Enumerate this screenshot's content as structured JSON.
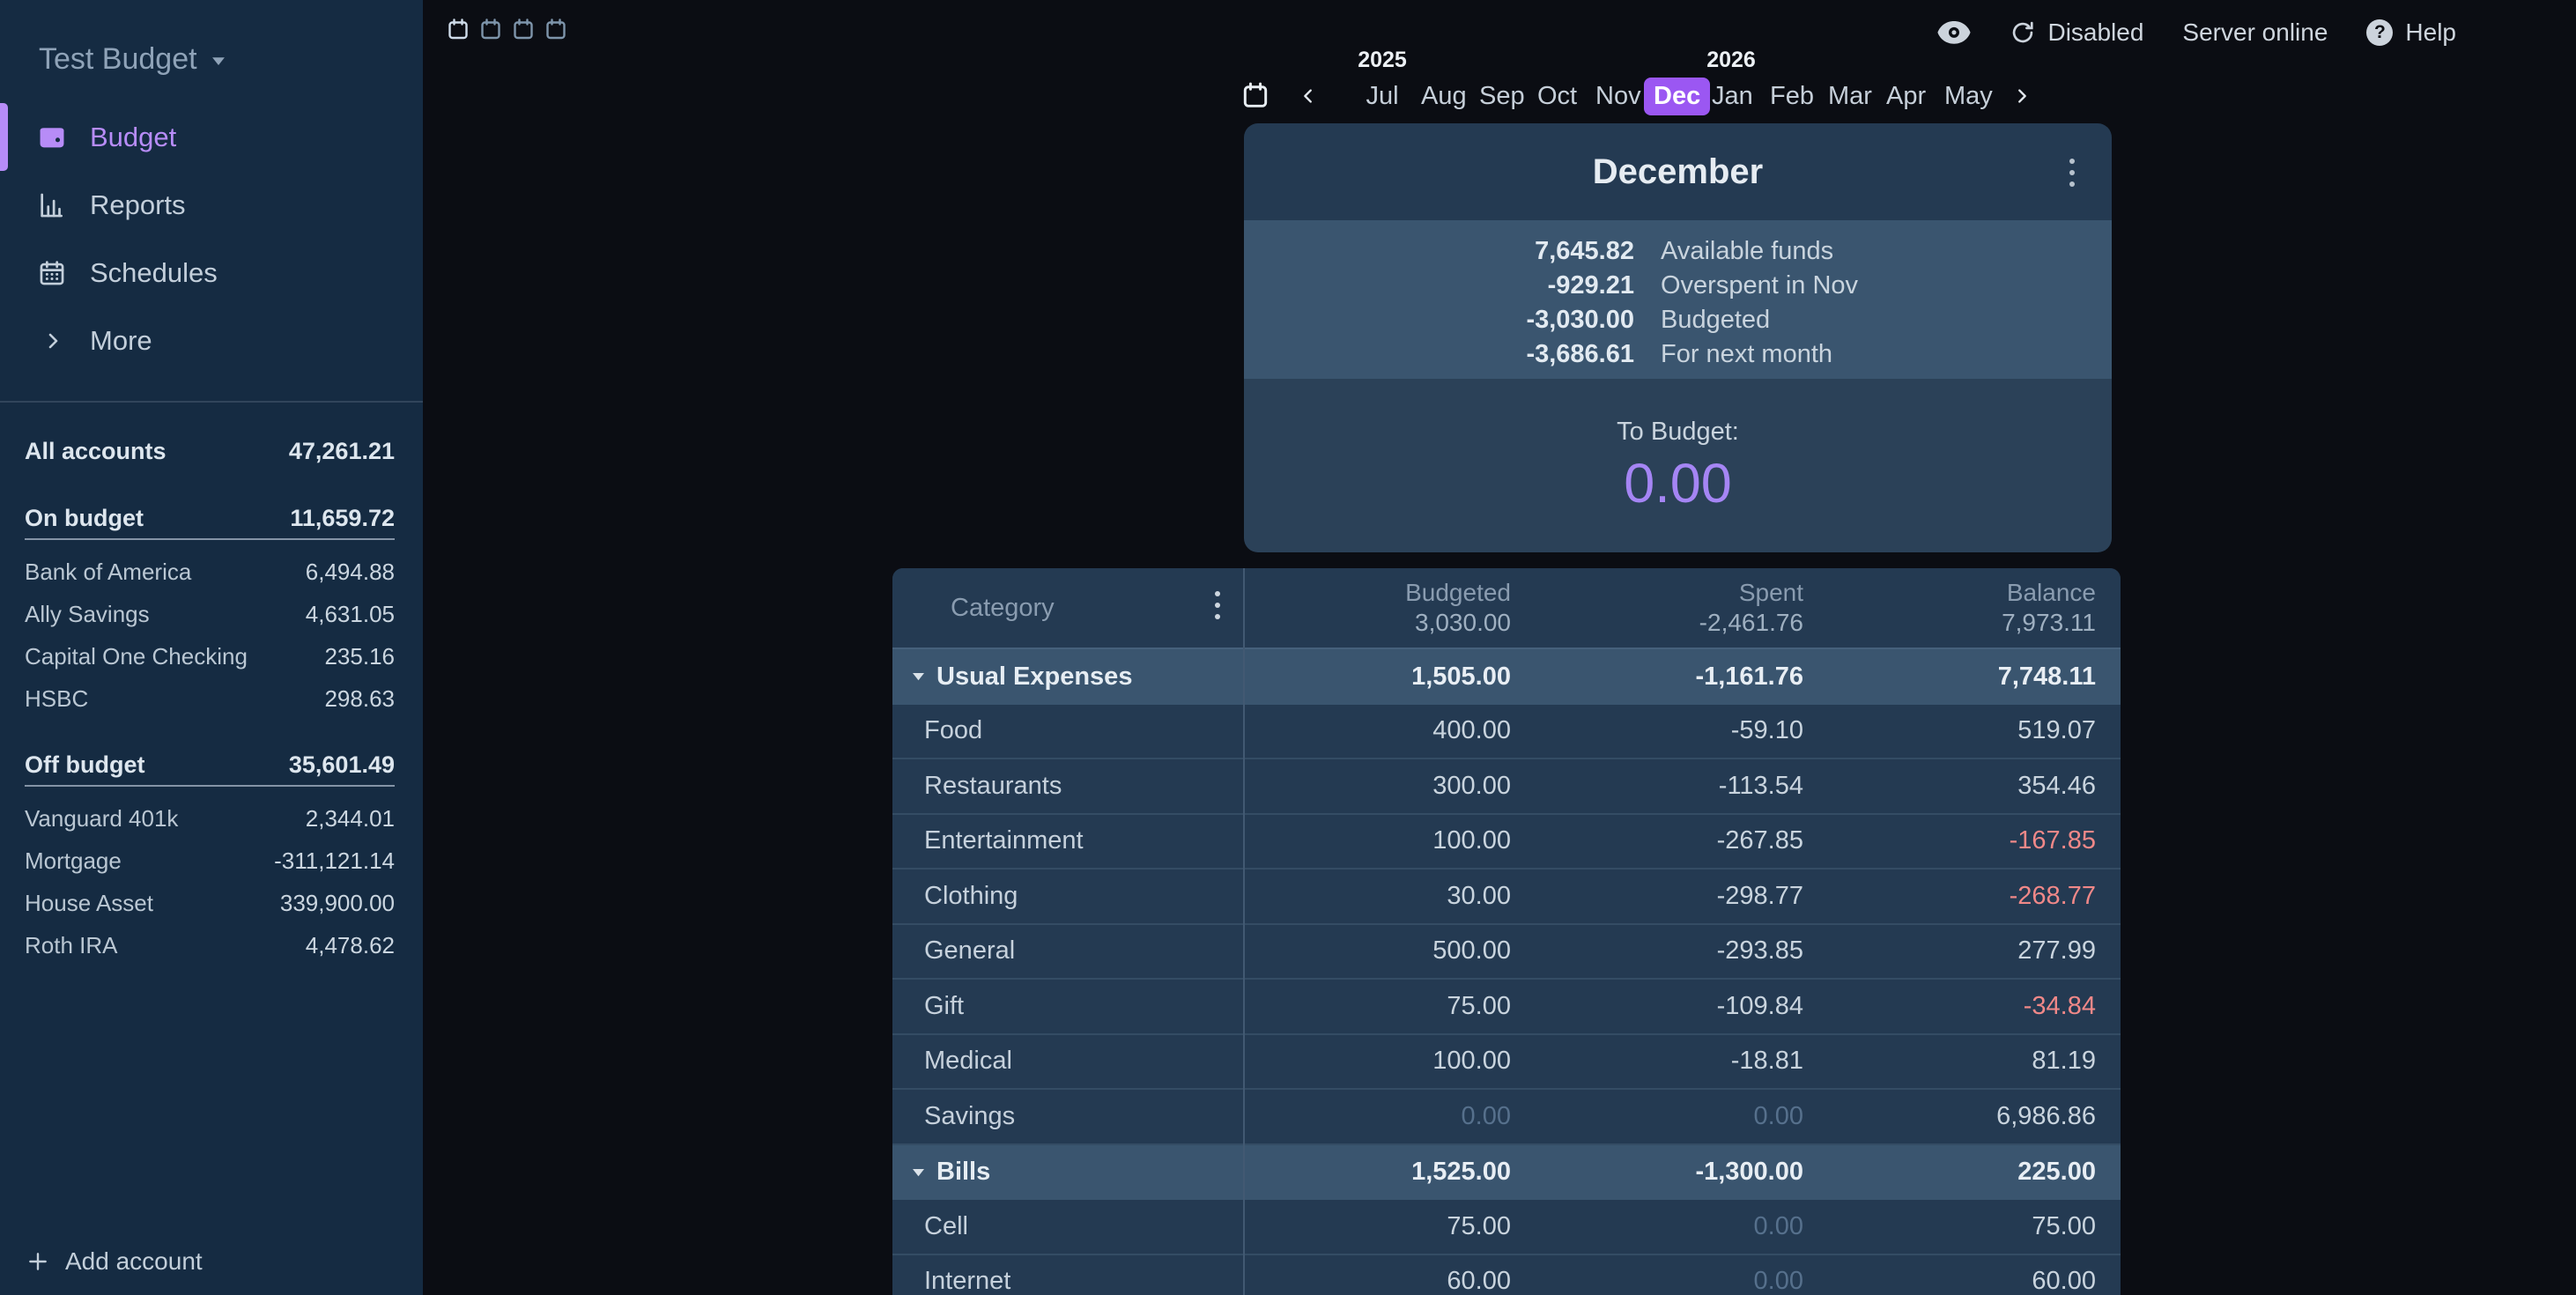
{
  "colors": {
    "accent_purple": "#9b57f2",
    "accent_purple_light": "#b78cf7",
    "to_budget_purple": "#a585f4",
    "negative_red": "#f08888",
    "sidebar_bg": "#152b42",
    "panel_bg": "#243a52",
    "panel_highlight_bg": "#3a556f"
  },
  "sidebar": {
    "title": "Test Budget",
    "nav": [
      {
        "label": "Budget",
        "icon": "wallet-icon",
        "active": true
      },
      {
        "label": "Reports",
        "icon": "bar-chart-icon",
        "active": false
      },
      {
        "label": "Schedules",
        "icon": "calendar-icon",
        "active": false
      },
      {
        "label": "More",
        "icon": "chevron-right-icon",
        "active": false
      }
    ],
    "account_groups": [
      {
        "label": "All accounts",
        "value": "47,261.21",
        "style": "total",
        "accounts": []
      },
      {
        "label": "On budget",
        "value": "11,659.72",
        "style": "section",
        "accounts": [
          {
            "name": "Bank of America",
            "value": "6,494.88"
          },
          {
            "name": "Ally Savings",
            "value": "4,631.05"
          },
          {
            "name": "Capital One Checking",
            "value": "235.16"
          },
          {
            "name": "HSBC",
            "value": "298.63"
          }
        ]
      },
      {
        "label": "Off budget",
        "value": "35,601.49",
        "style": "section",
        "accounts": [
          {
            "name": "Vanguard 401k",
            "value": "2,344.01"
          },
          {
            "name": "Mortgage",
            "value": "-311,121.14"
          },
          {
            "name": "House Asset",
            "value": "339,900.00"
          },
          {
            "name": "Roth IRA",
            "value": "4,478.62"
          }
        ]
      }
    ],
    "add_account_label": "Add account"
  },
  "topbar": {
    "privacy_icon": "eye-icon",
    "sync_icon": "sync-icon",
    "sync_label": "Disabled",
    "server_status": "Server online",
    "help_icon": "question-circle-icon",
    "help_label": "Help"
  },
  "month_nav": {
    "years": [
      {
        "label": "2025",
        "month_index": 0
      },
      {
        "label": "2026",
        "month_index": 6
      }
    ],
    "months": [
      "Jul",
      "Aug",
      "Sep",
      "Oct",
      "Nov",
      "Dec",
      "Jan",
      "Feb",
      "Mar",
      "Apr",
      "May"
    ],
    "selected_month": "Dec"
  },
  "budget_card": {
    "month_title": "December",
    "summary_rows": [
      {
        "value": "7,645.82",
        "label": "Available funds"
      },
      {
        "value": "-929.21",
        "label": "Overspent in Nov"
      },
      {
        "value": "-3,030.00",
        "label": "Budgeted"
      },
      {
        "value": "-3,686.61",
        "label": "For next month"
      }
    ],
    "to_budget_label": "To Budget:",
    "to_budget_value": "0.00"
  },
  "budget_table": {
    "category_header": "Category",
    "columns": [
      {
        "label": "Budgeted",
        "total": "3,030.00"
      },
      {
        "label": "Spent",
        "total": "-2,461.76"
      },
      {
        "label": "Balance",
        "total": "7,973.11"
      }
    ],
    "rows": [
      {
        "type": "group",
        "name": "Usual Expenses",
        "budgeted": "1,505.00",
        "spent": "-1,161.76",
        "balance": "7,748.11"
      },
      {
        "type": "category",
        "name": "Food",
        "budgeted": "400.00",
        "spent": "-59.10",
        "balance": "519.07"
      },
      {
        "type": "category",
        "name": "Restaurants",
        "budgeted": "300.00",
        "spent": "-113.54",
        "balance": "354.46"
      },
      {
        "type": "category",
        "name": "Entertainment",
        "budgeted": "100.00",
        "spent": "-267.85",
        "balance": "-167.85"
      },
      {
        "type": "category",
        "name": "Clothing",
        "budgeted": "30.00",
        "spent": "-298.77",
        "balance": "-268.77"
      },
      {
        "type": "category",
        "name": "General",
        "budgeted": "500.00",
        "spent": "-293.85",
        "balance": "277.99"
      },
      {
        "type": "category",
        "name": "Gift",
        "budgeted": "75.00",
        "spent": "-109.84",
        "balance": "-34.84"
      },
      {
        "type": "category",
        "name": "Medical",
        "budgeted": "100.00",
        "spent": "-18.81",
        "balance": "81.19"
      },
      {
        "type": "category",
        "name": "Savings",
        "budgeted": "0.00",
        "spent": "0.00",
        "balance": "6,986.86"
      },
      {
        "type": "group",
        "name": "Bills",
        "budgeted": "1,525.00",
        "spent": "-1,300.00",
        "balance": "225.00"
      },
      {
        "type": "category",
        "name": "Cell",
        "budgeted": "75.00",
        "spent": "0.00",
        "balance": "75.00"
      },
      {
        "type": "category",
        "name": "Internet",
        "budgeted": "60.00",
        "spent": "0.00",
        "balance": "60.00"
      }
    ]
  }
}
